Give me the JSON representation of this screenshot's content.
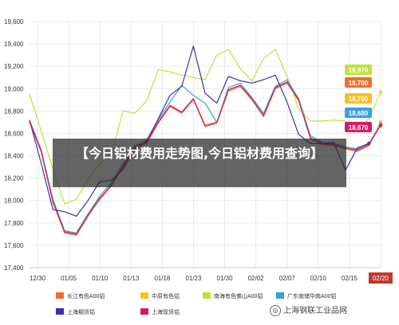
{
  "chart_data": {
    "type": "line",
    "ylim": [
      17400,
      19600
    ],
    "yticks": [
      17400,
      17600,
      17800,
      18000,
      18200,
      18400,
      18600,
      18800,
      19000,
      19200,
      19400,
      19600
    ],
    "x_labels": [
      "12/30",
      "01/05",
      "01/10",
      "01/13",
      "01/18",
      "01/23",
      "01/30",
      "02/02",
      "02/07",
      "02/10",
      "02/15",
      "02/20"
    ],
    "grid": true,
    "legend_position": "bottom",
    "series": [
      {
        "name": "长江有色A00铝",
        "color": "#ee6f2d",
        "end_label": "18,700",
        "values": [
          18700,
          18430,
          17980,
          17710,
          17690,
          17860,
          18010,
          18130,
          18300,
          18470,
          18510,
          18690,
          18840,
          18780,
          18900,
          18660,
          18690,
          18980,
          19020,
          18900,
          18750,
          19000,
          19050,
          18890,
          18550,
          18500,
          18490,
          18460,
          18440,
          18490,
          18700
        ]
      },
      {
        "name": "中原有色铝",
        "color": "#f6c024",
        "end_label": "18,700",
        "values": [
          18710,
          18440,
          17990,
          17720,
          17700,
          17870,
          18020,
          18140,
          18310,
          18480,
          18520,
          18700,
          18850,
          18790,
          18910,
          18670,
          18700,
          18990,
          19030,
          18910,
          18760,
          19010,
          19060,
          18900,
          18560,
          18510,
          18500,
          18470,
          18450,
          18500,
          18700
        ]
      },
      {
        "name": "南海有色佛山A00铝",
        "color": "#c3e03a",
        "end_label": "18,970",
        "values": [
          18950,
          18620,
          18280,
          17970,
          18010,
          18190,
          18330,
          18430,
          18800,
          18780,
          18890,
          19170,
          19150,
          19120,
          19100,
          19080,
          19300,
          19350,
          19180,
          19070,
          19270,
          19350,
          19110,
          18820,
          18710,
          18710,
          18720,
          18710,
          18640,
          18730,
          18970
        ]
      },
      {
        "name": "广东南储华南A00铝",
        "color": "#3ba1d8",
        "end_label": "18,680",
        "values": [
          18720,
          18450,
          18010,
          17730,
          17710,
          17880,
          18040,
          18160,
          18330,
          18490,
          18540,
          18720,
          18880,
          19030,
          18940,
          18870,
          18700,
          19010,
          19050,
          18920,
          18780,
          19020,
          19080,
          18910,
          18580,
          18520,
          18510,
          18480,
          18460,
          18510,
          18680
        ]
      },
      {
        "name": "上海期货铝",
        "color": "#3c2fa8",
        "end_label": "",
        "values": [
          18720,
          18330,
          17920,
          17900,
          17860,
          18000,
          18170,
          18180,
          18280,
          18460,
          18530,
          18730,
          18940,
          19020,
          19380,
          18960,
          18870,
          19110,
          19070,
          19050,
          19080,
          19120,
          18880,
          18590,
          18510,
          18510,
          18520,
          18270,
          18470,
          18510
        ]
      },
      {
        "name": "上海现货铝",
        "color": "#d11c6b",
        "end_label": "18,670",
        "values": [
          18710,
          18440,
          17990,
          17720,
          17700,
          17870,
          18020,
          18140,
          18310,
          18480,
          18520,
          18700,
          18850,
          18790,
          18910,
          18670,
          18700,
          18990,
          19030,
          18910,
          18760,
          19010,
          19060,
          18900,
          18560,
          18510,
          18500,
          18470,
          18450,
          18500,
          18670
        ]
      }
    ],
    "highlight_x_label": "02/20"
  },
  "overlay_title": "【今日铝材费用走势图,今日铝材费用查询】",
  "watermark": "上海钢联工业品网"
}
